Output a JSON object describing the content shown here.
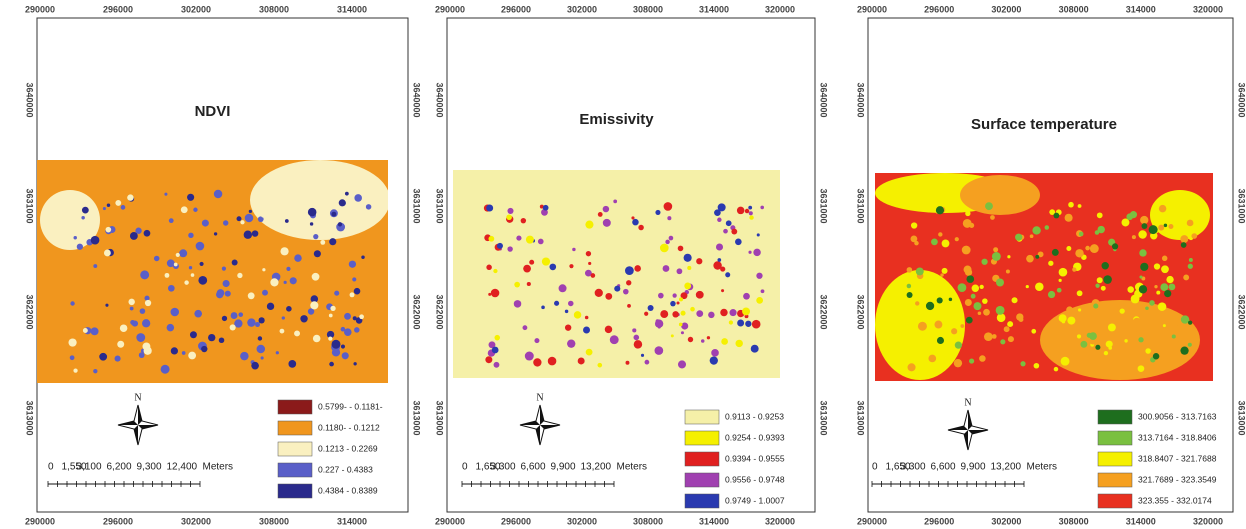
{
  "panels": [
    {
      "title": "NDVI",
      "x_ticks": [
        290000,
        296000,
        302000,
        308000,
        314000
      ],
      "y_ticks": [
        3640000,
        3631000,
        3622000,
        3613000
      ],
      "north": "N",
      "scale": {
        "labels": [
          "0",
          "1,550",
          "3,100",
          "6,200",
          "9,300",
          "12,400"
        ],
        "unit": "Meters"
      },
      "legend": [
        {
          "label": "0.5799- - 0.1181-",
          "color": "#8b1a1a"
        },
        {
          "label": "0.1180- - 0.1212",
          "color": "#f0961e"
        },
        {
          "label": "0.1213 - 0.2269",
          "color": "#faf0c0"
        },
        {
          "label": "0.227 - 0.4383",
          "color": "#5a5fc8"
        },
        {
          "label": "0.4384 - 0.8389",
          "color": "#2a2a8c"
        }
      ]
    },
    {
      "title": "Emissivity",
      "x_ticks": [
        290000,
        296000,
        302000,
        308000,
        314000,
        320000
      ],
      "y_ticks": [
        3640000,
        3631000,
        3622000,
        3613000
      ],
      "north": "N",
      "scale": {
        "labels": [
          "0",
          "1,650",
          "3,300",
          "6,600",
          "9,900",
          "13,200"
        ],
        "unit": "Meters"
      },
      "legend": [
        {
          "label": "0.9113 - 0.9253",
          "color": "#f5f0a8"
        },
        {
          "label": "0.9254 - 0.9393",
          "color": "#f5f000"
        },
        {
          "label": "0.9394 - 0.9555",
          "color": "#e02020"
        },
        {
          "label": "0.9556 - 0.9748",
          "color": "#a040b0"
        },
        {
          "label": "0.9749 - 1.0007",
          "color": "#2a3ab0"
        }
      ]
    },
    {
      "title": "Surface temperature",
      "x_ticks": [
        290000,
        296000,
        302000,
        308000,
        314000,
        320000
      ],
      "y_ticks": [
        3640000,
        3631000,
        3622000,
        3613000
      ],
      "north": "N",
      "scale": {
        "labels": [
          "0",
          "1,650",
          "3,300",
          "6,600",
          "9,900",
          "13,200"
        ],
        "unit": "Meters"
      },
      "legend": [
        {
          "label": "300.9056 - 313.7163",
          "color": "#1e6e1e"
        },
        {
          "label": "313.7164 - 318.8406",
          "color": "#7ac040"
        },
        {
          "label": "318.8407 - 321.7688",
          "color": "#f5f000"
        },
        {
          "label": "321.7689 - 323.3549",
          "color": "#f5a020"
        },
        {
          "label": "323.355 - 332.0174",
          "color": "#e83020"
        }
      ]
    }
  ]
}
